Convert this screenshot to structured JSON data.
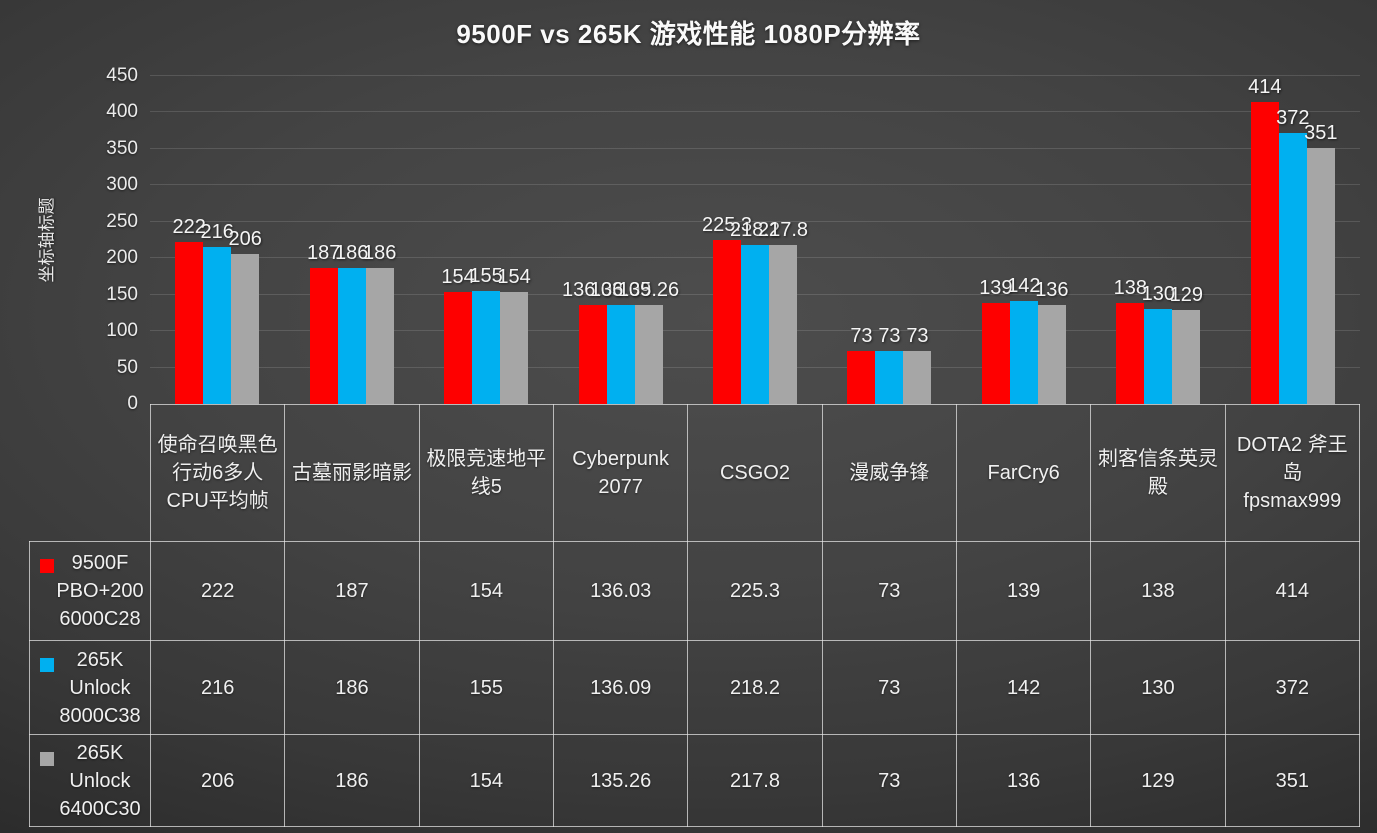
{
  "title": "9500F vs 265K 游戏性能 1080P分辨率",
  "chart_data": {
    "type": "bar",
    "title": "9500F vs 265K 游戏性能 1080P分辨率",
    "y_axis_title": "坐标轴标题",
    "ylim": [
      0,
      450
    ],
    "ytick_interval": 50,
    "grid": true,
    "legend_position": "left-table",
    "categories": [
      "使命召唤黑色行动6多人 CPU平均帧",
      "古墓丽影暗影",
      "极限竞速地平线5",
      "Cyberpunk 2077",
      "CSGO2",
      "漫威争锋",
      "FarCry6",
      "刺客信条英灵殿",
      "DOTA2 斧王岛 fpsmax999"
    ],
    "series": [
      {
        "name": "9500F PBO+200 6000C28",
        "color": "#fe0000",
        "values": [
          "222",
          "187",
          "154",
          "136.03",
          "225.3",
          "73",
          "139",
          "138",
          "414"
        ]
      },
      {
        "name": "265K Unlock 8000C38",
        "color": "#00b0f0",
        "values": [
          "216",
          "186",
          "155",
          "136.09",
          "218.2",
          "73",
          "142",
          "130",
          "372"
        ]
      },
      {
        "name": "265K Unlock 6400C30",
        "color": "#a6a6a6",
        "values": [
          "206",
          "186",
          "154",
          "135.26",
          "217.8",
          "73",
          "136",
          "129",
          "351"
        ]
      }
    ]
  },
  "colors": {
    "text": "#f2f2f2",
    "gridline": "rgba(255,255,255,0.13)",
    "table_border": "rgba(232,232,232,0.72)"
  }
}
